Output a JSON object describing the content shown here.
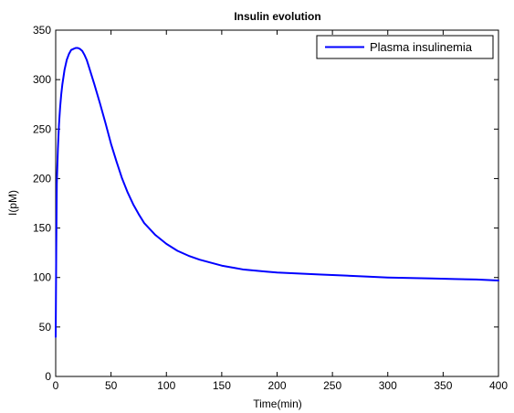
{
  "chart_data": {
    "type": "line",
    "title": "Insulin evolution",
    "xlabel": "Time(min)",
    "ylabel": "I(pM)",
    "xlim": [
      0,
      400
    ],
    "ylim": [
      0,
      350
    ],
    "xticks": [
      0,
      50,
      100,
      150,
      200,
      250,
      300,
      350,
      400
    ],
    "yticks": [
      0,
      50,
      100,
      150,
      200,
      250,
      300,
      350
    ],
    "grid": false,
    "legend_position": "top-right",
    "series": [
      {
        "name": "Plasma insulinemia",
        "color": "#0000ff",
        "x": [
          0,
          0.5,
          1,
          2,
          3,
          4,
          5,
          6,
          8,
          10,
          12,
          14,
          16,
          18,
          20,
          22,
          24,
          26,
          28,
          30,
          35,
          40,
          45,
          50,
          55,
          60,
          65,
          70,
          75,
          80,
          90,
          100,
          110,
          120,
          130,
          140,
          150,
          160,
          170,
          180,
          190,
          200,
          220,
          240,
          260,
          280,
          300,
          320,
          340,
          360,
          380,
          400
        ],
        "y": [
          40,
          130,
          195,
          230,
          255,
          272,
          285,
          295,
          310,
          320,
          326,
          330,
          331,
          332,
          332,
          331,
          329,
          325,
          320,
          313,
          295,
          276,
          256,
          235,
          217,
          200,
          186,
          174,
          164,
          155,
          143,
          134,
          127,
          122,
          118,
          115,
          112,
          110,
          108,
          107,
          106,
          105,
          104,
          103,
          102,
          101,
          100,
          99.5,
          99,
          98.5,
          98,
          97
        ]
      }
    ]
  }
}
